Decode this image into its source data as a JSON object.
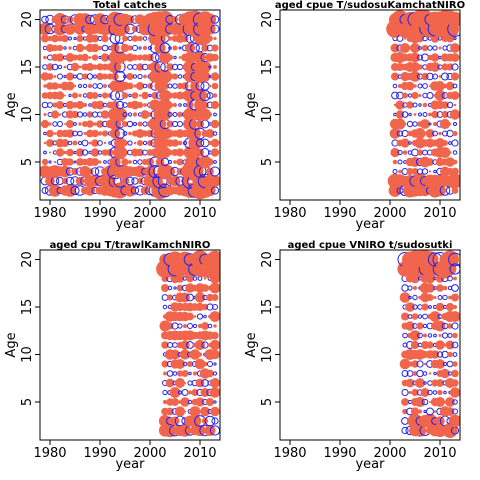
{
  "colors": {
    "positive": "#f0654b",
    "negative": "#2222ee",
    "axis": "#000000"
  },
  "chart_data": [
    {
      "type": "scatter",
      "subtype": "bubble-residuals",
      "title": "Total catches",
      "xlabel": "year",
      "ylabel": "Age",
      "xlim": [
        1978,
        2014
      ],
      "ylim": [
        1,
        21
      ],
      "xticks": [
        "1980",
        "1990",
        "2000",
        "2010"
      ],
      "yticks": [
        "5",
        "10",
        "15",
        "20"
      ],
      "years": [
        1979,
        2013
      ],
      "ages": [
        2,
        20
      ]
    },
    {
      "type": "scatter",
      "subtype": "bubble-residuals",
      "title": "aged    cpue    T/sudosuKamchatNIRO",
      "xlabel": "year",
      "ylabel": "Age",
      "xlim": [
        1978,
        2014
      ],
      "ylim": [
        1,
        21
      ],
      "xticks": [
        "1980",
        "1990",
        "2000",
        "2010"
      ],
      "yticks": [
        "5",
        "10",
        "15",
        "20"
      ],
      "years": [
        2001,
        2013
      ],
      "ages": [
        2,
        20
      ]
    },
    {
      "type": "scatter",
      "subtype": "bubble-residuals",
      "title": "aged    cpu    T/trawlKamchNIRO",
      "xlabel": "year",
      "ylabel": "Age",
      "xlim": [
        1978,
        2014
      ],
      "ylim": [
        1,
        21
      ],
      "xticks": [
        "1980",
        "1990",
        "2000",
        "2010"
      ],
      "yticks": [
        "5",
        "10",
        "15",
        "20"
      ],
      "years": [
        2003,
        2013
      ],
      "ages": [
        2,
        20
      ]
    },
    {
      "type": "scatter",
      "subtype": "bubble-residuals",
      "title": "aged    cpue    VNIRO    t/sudosutki",
      "xlabel": "year",
      "ylabel": "Age",
      "xlim": [
        1978,
        2014
      ],
      "ylim": [
        1,
        21
      ],
      "xticks": [
        "1980",
        "1990",
        "2000",
        "2010"
      ],
      "yticks": [
        "5",
        "10",
        "15",
        "20"
      ],
      "years": [
        2003,
        2013
      ],
      "ages": [
        2,
        20
      ]
    }
  ]
}
